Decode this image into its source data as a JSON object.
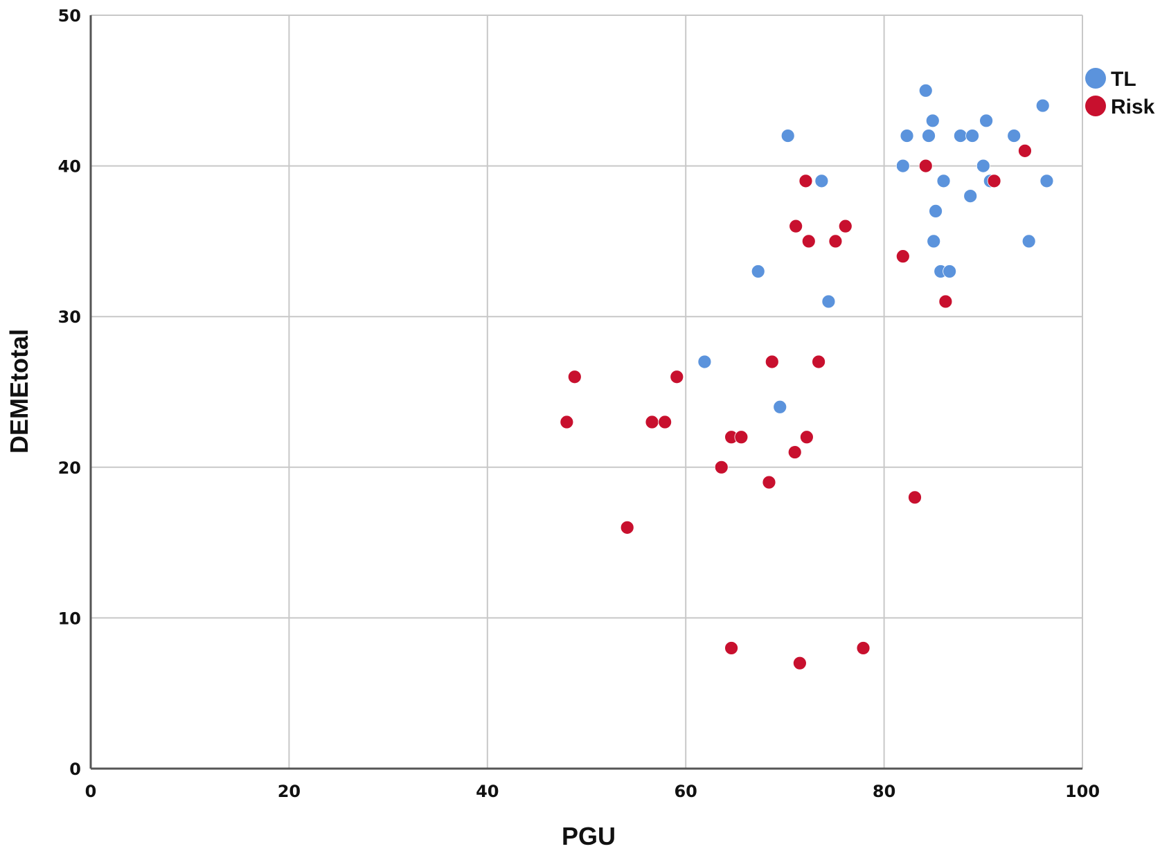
{
  "chart_data": {
    "type": "scatter",
    "xlabel": "PGU",
    "ylabel": "DEMEtotal",
    "xlim": [
      0,
      100
    ],
    "ylim": [
      0,
      50
    ],
    "x_ticks": [
      0,
      20,
      40,
      60,
      80,
      100
    ],
    "y_ticks": [
      0,
      10,
      20,
      30,
      40,
      50
    ],
    "grid": true,
    "legend_position": "top-right",
    "series": [
      {
        "name": "TL",
        "color": "#5b93dc",
        "points": [
          {
            "x": 84.2,
            "y": 45
          },
          {
            "x": 84.9,
            "y": 43
          },
          {
            "x": 90.3,
            "y": 43
          },
          {
            "x": 96.0,
            "y": 44
          },
          {
            "x": 70.3,
            "y": 42
          },
          {
            "x": 82.3,
            "y": 42
          },
          {
            "x": 84.5,
            "y": 42
          },
          {
            "x": 87.7,
            "y": 42
          },
          {
            "x": 88.9,
            "y": 42
          },
          {
            "x": 93.1,
            "y": 42
          },
          {
            "x": 81.9,
            "y": 40
          },
          {
            "x": 90.0,
            "y": 40
          },
          {
            "x": 73.7,
            "y": 39
          },
          {
            "x": 86.0,
            "y": 39
          },
          {
            "x": 90.7,
            "y": 39
          },
          {
            "x": 96.4,
            "y": 39
          },
          {
            "x": 88.7,
            "y": 38
          },
          {
            "x": 85.2,
            "y": 37
          },
          {
            "x": 85.0,
            "y": 35
          },
          {
            "x": 94.6,
            "y": 35
          },
          {
            "x": 67.3,
            "y": 33
          },
          {
            "x": 85.7,
            "y": 33
          },
          {
            "x": 86.6,
            "y": 33
          },
          {
            "x": 74.4,
            "y": 31
          },
          {
            "x": 61.9,
            "y": 27
          },
          {
            "x": 69.5,
            "y": 24
          }
        ]
      },
      {
        "name": "Risk",
        "color": "#c8102e",
        "points": [
          {
            "x": 94.2,
            "y": 41
          },
          {
            "x": 84.2,
            "y": 40
          },
          {
            "x": 72.1,
            "y": 39
          },
          {
            "x": 91.1,
            "y": 39
          },
          {
            "x": 71.1,
            "y": 36
          },
          {
            "x": 76.1,
            "y": 36
          },
          {
            "x": 72.4,
            "y": 35
          },
          {
            "x": 75.1,
            "y": 35
          },
          {
            "x": 81.9,
            "y": 34
          },
          {
            "x": 86.2,
            "y": 31
          },
          {
            "x": 68.7,
            "y": 27
          },
          {
            "x": 73.4,
            "y": 27
          },
          {
            "x": 48.8,
            "y": 26
          },
          {
            "x": 59.1,
            "y": 26
          },
          {
            "x": 48.0,
            "y": 23
          },
          {
            "x": 56.6,
            "y": 23
          },
          {
            "x": 57.9,
            "y": 23
          },
          {
            "x": 64.6,
            "y": 22
          },
          {
            "x": 65.6,
            "y": 22
          },
          {
            "x": 72.2,
            "y": 22
          },
          {
            "x": 71.0,
            "y": 21
          },
          {
            "x": 63.6,
            "y": 20
          },
          {
            "x": 68.4,
            "y": 19
          },
          {
            "x": 83.1,
            "y": 18
          },
          {
            "x": 54.1,
            "y": 16
          },
          {
            "x": 64.6,
            "y": 8
          },
          {
            "x": 77.9,
            "y": 8
          },
          {
            "x": 71.5,
            "y": 7
          }
        ]
      }
    ]
  }
}
